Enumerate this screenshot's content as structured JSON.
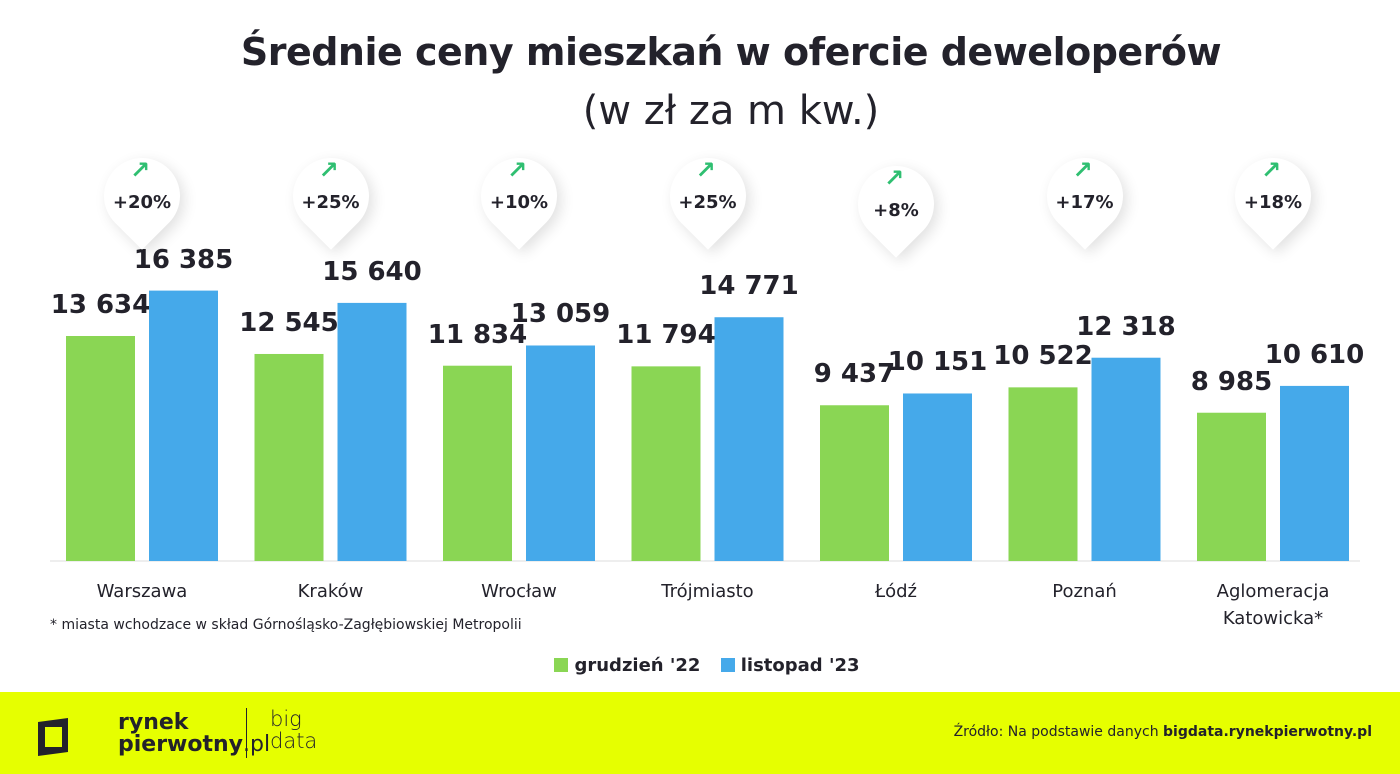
{
  "chart_data": {
    "type": "bar",
    "title": "Średnie ceny mieszkań w ofercie deweloperów",
    "subtitle": "(w zł za m kw.)",
    "categories": [
      "Warszawa",
      "Kraków",
      "Wrocław",
      "Trójmiasto",
      "Łódź",
      "Poznań",
      "Aglomeracja Katowicka*"
    ],
    "series": [
      {
        "name": "grudzień '22",
        "color": "#8ad654",
        "values": [
          13634,
          12545,
          11834,
          11794,
          9437,
          10522,
          8985
        ],
        "labels": [
          "13 634",
          "12 545",
          "11 834",
          "11 794",
          "9 437",
          "10 522",
          "8 985"
        ]
      },
      {
        "name": "listopad '23",
        "color": "#45a9ea",
        "values": [
          16385,
          15640,
          13059,
          14771,
          10151,
          12318,
          10610
        ],
        "labels": [
          "16 385",
          "15 640",
          "13 059",
          "14 771",
          "10 151",
          "12 318",
          "10 610"
        ]
      }
    ],
    "changes": [
      "+20%",
      "+25%",
      "+10%",
      "+25%",
      "+8%",
      "+17%",
      "+18%"
    ],
    "change_icon": "arrow-up-right-icon",
    "change_color": "#2fbf71",
    "legend": "bottom",
    "grid": false
  },
  "footnote": "* miasta wchodzace w skład Górnośląsko-Zagłębiowskiej Metropolii",
  "footer": {
    "bg": "#e6ff00",
    "logo_line1": "rynek",
    "logo_line2": "pierwotny",
    "logo_suffix": ".pl",
    "logo_big": "big",
    "logo_data": "data",
    "source_prefix": "Źródło: Na podstawie danych ",
    "source_bold": "bigdata.rynekpierwotny.pl"
  }
}
